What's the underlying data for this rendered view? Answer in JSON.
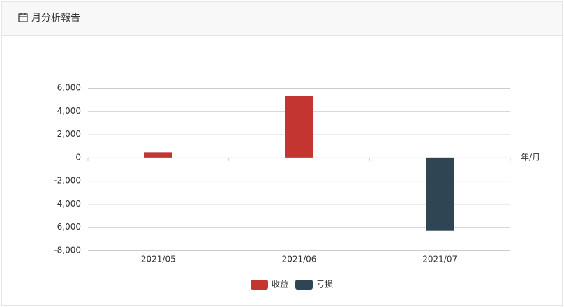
{
  "header": {
    "title": "月分析報告"
  },
  "chart_data": {
    "type": "bar",
    "stacked": true,
    "categories": [
      "2021/05",
      "2021/06",
      "2021/07"
    ],
    "xlabel": "年/月",
    "series": [
      {
        "name": "收益",
        "color": "#c23531",
        "values": [
          450,
          5300,
          null
        ]
      },
      {
        "name": "亏损",
        "color": "#2f4554",
        "values": [
          null,
          null,
          -6300
        ]
      }
    ],
    "ylim": [
      -8000,
      6000
    ],
    "yticks": [
      {
        "value": -8000,
        "label": "-8,000"
      },
      {
        "value": -6000,
        "label": "-6,000"
      },
      {
        "value": -4000,
        "label": "-4,000"
      },
      {
        "value": -2000,
        "label": "-2,000"
      },
      0,
      {
        "value": 2000,
        "label": "2,000"
      },
      {
        "value": 4000,
        "label": "4,000"
      },
      {
        "value": 6000,
        "label": "6,000"
      }
    ],
    "grid": true,
    "legend": "bottom"
  }
}
